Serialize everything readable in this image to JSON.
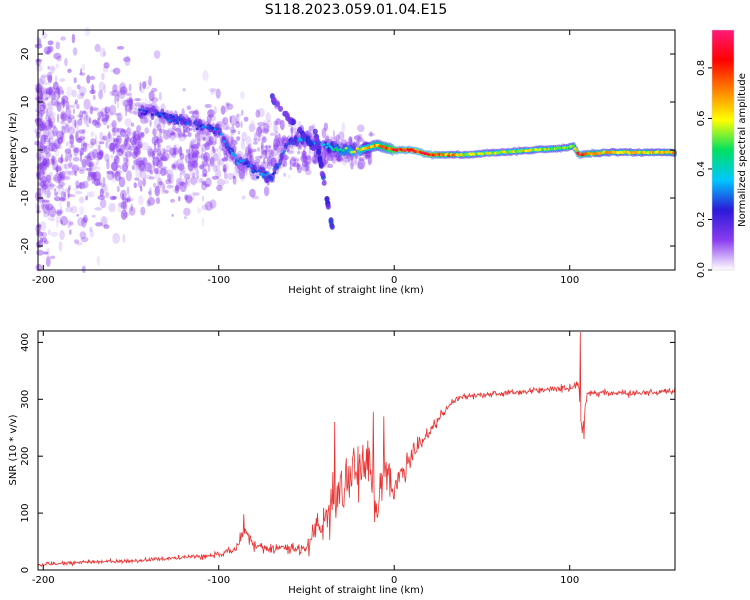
{
  "figure_title": "S118.2023.059.01.04.E15",
  "colors": {
    "snr_line": "#e83232",
    "spectrum_ridge": "#ff2200",
    "speckle": "#8a3cf0",
    "axes": "#000000"
  },
  "chart_data": [
    {
      "type": "heatmap",
      "title": "",
      "xlabel": "Height of straight line (km)",
      "ylabel": "Frequency (Hz)",
      "xlim": [
        -203,
        160
      ],
      "ylim": [
        -25,
        25
      ],
      "xticks": [
        -200,
        -100,
        0,
        100
      ],
      "yticks": [
        -20,
        -10,
        0,
        10,
        20
      ],
      "colorbar": {
        "label": "Normalized spectral amplitude",
        "range": [
          0,
          0.95
        ],
        "ticks": [
          "0.0",
          "0.2",
          "0.4",
          "0.6",
          "0.8"
        ],
        "colormap": [
          "#ffffff",
          "#8a3cf0",
          "#2a1ad8",
          "#00c8ff",
          "#00e060",
          "#ffff00",
          "#ff8000",
          "#ff0000",
          "#ff1a7a"
        ]
      },
      "ridge": {
        "x": [
          -140,
          -130,
          -120,
          -110,
          -100,
          -95,
          -90,
          -85,
          -80,
          -75,
          -70,
          -60,
          -50,
          -40,
          -30,
          -20,
          -10,
          0,
          10,
          20,
          40,
          60,
          80,
          100,
          102,
          105,
          120,
          140,
          160
        ],
        "freq": [
          8,
          7,
          6,
          5,
          4,
          1,
          -2,
          -3,
          -4,
          -5,
          -6,
          2,
          2,
          1,
          0,
          0,
          1,
          0,
          0,
          -1,
          -1,
          -0.5,
          0,
          0.5,
          1,
          -1,
          -0.5,
          -0.5,
          -0.5
        ],
        "amplitude": [
          0.25,
          0.3,
          0.3,
          0.3,
          0.3,
          0.35,
          0.35,
          0.3,
          0.3,
          0.3,
          0.3,
          0.3,
          0.35,
          0.35,
          0.5,
          0.6,
          0.7,
          0.85,
          0.9,
          0.9,
          0.6,
          0.6,
          0.6,
          0.55,
          0.5,
          0.85,
          0.65,
          0.65,
          0.7
        ]
      }
    },
    {
      "type": "line",
      "title": "",
      "xlabel": "Height of straight line (km)",
      "ylabel": "SNR (10 * v/v)",
      "xlim": [
        -203,
        160
      ],
      "ylim": [
        0,
        420
      ],
      "xticks": [
        -200,
        -100,
        0,
        100
      ],
      "yticks": [
        0,
        100,
        200,
        300,
        400
      ],
      "series": [
        {
          "x": [
            -203,
            -180,
            -160,
            -140,
            -120,
            -100,
            -90,
            -85,
            -80,
            -70,
            -60,
            -50,
            -45,
            -40,
            -35,
            -30,
            -25,
            -20,
            -15,
            -10,
            -5,
            0,
            5,
            10,
            15,
            20,
            25,
            30,
            35,
            40,
            50,
            60,
            70,
            80,
            90,
            100,
            105,
            107,
            110,
            120,
            130,
            140,
            150,
            160
          ],
          "values": [
            10,
            13,
            15,
            18,
            22,
            27,
            40,
            70,
            45,
            35,
            40,
            35,
            70,
            90,
            120,
            140,
            160,
            170,
            180,
            100,
            180,
            140,
            170,
            200,
            220,
            240,
            265,
            285,
            300,
            305,
            308,
            310,
            312,
            315,
            318,
            320,
            330,
            240,
            310,
            312,
            310,
            312,
            312,
            315
          ],
          "noise": [
            6,
            6,
            6,
            6,
            7,
            9,
            14,
            20,
            16,
            15,
            18,
            25,
            40,
            55,
            70,
            75,
            80,
            80,
            80,
            70,
            60,
            40,
            35,
            30,
            25,
            18,
            14,
            12,
            10,
            9,
            9,
            9,
            9,
            10,
            10,
            12,
            15,
            15,
            10,
            9,
            9,
            9,
            9,
            9
          ],
          "spikes": [
            {
              "x": -86,
              "value": 98
            },
            {
              "x": -34,
              "value": 260
            },
            {
              "x": -12,
              "value": 278
            },
            {
              "x": -6,
              "value": 270
            },
            {
              "x": 106,
              "value": 418
            },
            {
              "x": 108,
              "value": 230
            }
          ]
        }
      ]
    }
  ]
}
